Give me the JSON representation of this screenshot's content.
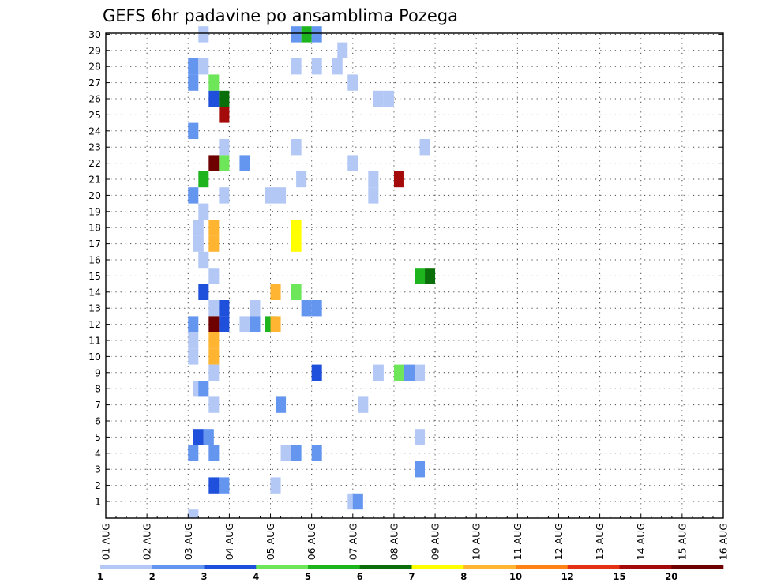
{
  "chart_data": {
    "type": "heatmap",
    "title": "GEFS 6hr padavine po ansamblima Pozega",
    "x_tick_labels": [
      "01 AUG",
      "02 AUG",
      "03 AUG",
      "04 AUG",
      "05 AUG",
      "06 AUG",
      "07 AUG",
      "08 AUG",
      "09 AUG",
      "10 AUG",
      "11 AUG",
      "12 AUG",
      "13 AUG",
      "14 AUG",
      "15 AUG",
      "16 AUG"
    ],
    "y_tick_labels": [
      "1",
      "2",
      "3",
      "4",
      "5",
      "6",
      "7",
      "8",
      "9",
      "10",
      "11",
      "12",
      "13",
      "14",
      "15",
      "16",
      "17",
      "18",
      "19",
      "20",
      "21",
      "22",
      "23",
      "24",
      "25",
      "26",
      "27",
      "28",
      "29",
      "30"
    ],
    "x_unit": "6-hour steps from 01 AUG 00Z",
    "grid": true,
    "colorbar": {
      "labels": [
        "1",
        "2",
        "3",
        "4",
        "5",
        "6",
        "7",
        "8",
        "10",
        "12",
        "15",
        "20"
      ],
      "colors": [
        "#b4c8f5",
        "#6496f0",
        "#1e50dc",
        "#6ee65a",
        "#1eb41e",
        "#0a6e0a",
        "#ffff00",
        "#ffb432",
        "#ff8214",
        "#e63214",
        "#a50a0a",
        "#6e0000"
      ]
    },
    "cells": [
      {
        "t": [
          9.5
        ],
        "m": 30,
        "v": 1
      },
      {
        "t": [
          18.5
        ],
        "m": 30,
        "v": 2
      },
      {
        "t": [
          19.5
        ],
        "m": 30,
        "v": 5
      },
      {
        "t": [
          20.5
        ],
        "m": 30,
        "v": 2
      },
      {
        "t": [
          23
        ],
        "m": 29,
        "v": 1
      },
      {
        "t": [
          8.5
        ],
        "m": 28,
        "v": 2
      },
      {
        "t": [
          9.5
        ],
        "m": 28,
        "v": 1
      },
      {
        "t": [
          18.5
        ],
        "m": 28,
        "v": 1
      },
      {
        "t": [
          20.5
        ],
        "m": 28,
        "v": 1
      },
      {
        "t": [
          22.5
        ],
        "m": 28,
        "v": 1
      },
      {
        "t": [
          8.5
        ],
        "m": 27,
        "v": 2
      },
      {
        "t": [
          10.5
        ],
        "m": 27,
        "v": 4
      },
      {
        "t": [
          24
        ],
        "m": 27,
        "v": 1
      },
      {
        "t": [
          10.5
        ],
        "m": 26,
        "v": 3
      },
      {
        "t": [
          11.5
        ],
        "m": 26,
        "v": 6
      },
      {
        "t": [
          26.5
        ],
        "m": 26,
        "v": 1
      },
      {
        "t": [
          27.5
        ],
        "m": 26,
        "v": 1
      },
      {
        "t": [
          11.5
        ],
        "m": 25,
        "v": 15
      },
      {
        "t": [
          8.5
        ],
        "m": 24,
        "v": 2
      },
      {
        "t": [
          11.5
        ],
        "m": 23,
        "v": 1
      },
      {
        "t": [
          18.5
        ],
        "m": 23,
        "v": 1
      },
      {
        "t": [
          31
        ],
        "m": 23,
        "v": 1
      },
      {
        "t": [
          10.5
        ],
        "m": 22,
        "v": 20
      },
      {
        "t": [
          11.5
        ],
        "m": 22,
        "v": 4
      },
      {
        "t": [
          13.5
        ],
        "m": 22,
        "v": 2
      },
      {
        "t": [
          24
        ],
        "m": 22,
        "v": 1
      },
      {
        "t": [
          9.5
        ],
        "m": 21,
        "v": 5
      },
      {
        "t": [
          19
        ],
        "m": 21,
        "v": 1
      },
      {
        "t": [
          26
        ],
        "m": 21,
        "v": 1
      },
      {
        "t": [
          28.5
        ],
        "m": 21,
        "v": 15
      },
      {
        "t": [
          8.5
        ],
        "m": 20,
        "v": 2
      },
      {
        "t": [
          11.5
        ],
        "m": 20,
        "v": 1
      },
      {
        "t": [
          16
        ],
        "m": 20,
        "v": 1
      },
      {
        "t": [
          17
        ],
        "m": 20,
        "v": 1
      },
      {
        "t": [
          26
        ],
        "m": 20,
        "v": 1
      },
      {
        "t": [
          9.5
        ],
        "m": 19,
        "v": 1
      },
      {
        "t": [
          9
        ],
        "m": 18,
        "v": 1
      },
      {
        "t": [
          10.5
        ],
        "m": 18,
        "v": 8
      },
      {
        "t": [
          18.5
        ],
        "m": 18,
        "v": 7
      },
      {
        "t": [
          9
        ],
        "m": 17,
        "v": 1
      },
      {
        "t": [
          10.5
        ],
        "m": 17,
        "v": 8
      },
      {
        "t": [
          18.5
        ],
        "m": 17,
        "v": 7
      },
      {
        "t": [
          9.5
        ],
        "m": 16,
        "v": 1
      },
      {
        "t": [
          10.5
        ],
        "m": 15,
        "v": 1
      },
      {
        "t": [
          30.5
        ],
        "m": 15,
        "v": 5
      },
      {
        "t": [
          31.5
        ],
        "m": 15,
        "v": 6
      },
      {
        "t": [
          9.5
        ],
        "m": 14,
        "v": 3
      },
      {
        "t": [
          16.5
        ],
        "m": 14,
        "v": 8
      },
      {
        "t": [
          18.5
        ],
        "m": 14,
        "v": 4
      },
      {
        "t": [
          10.5
        ],
        "m": 13,
        "v": 1
      },
      {
        "t": [
          11.5
        ],
        "m": 13,
        "v": 3
      },
      {
        "t": [
          14.5
        ],
        "m": 13,
        "v": 1
      },
      {
        "t": [
          19.5
        ],
        "m": 13,
        "v": 2
      },
      {
        "t": [
          20.5
        ],
        "m": 13,
        "v": 2
      },
      {
        "t": [
          8.5
        ],
        "m": 12,
        "v": 2
      },
      {
        "t": [
          10.5
        ],
        "m": 12,
        "v": 20
      },
      {
        "t": [
          11.5
        ],
        "m": 12,
        "v": 3
      },
      {
        "t": [
          13.5
        ],
        "m": 12,
        "v": 1
      },
      {
        "t": [
          14.5
        ],
        "m": 12,
        "v": 2
      },
      {
        "t": [
          16
        ],
        "m": 12,
        "v": 5
      },
      {
        "t": [
          16.5
        ],
        "m": 12,
        "v": 8
      },
      {
        "t": [
          8.5
        ],
        "m": 11,
        "v": 1
      },
      {
        "t": [
          10.5
        ],
        "m": 11,
        "v": 8
      },
      {
        "t": [
          8.5
        ],
        "m": 10,
        "v": 1
      },
      {
        "t": [
          10.5
        ],
        "m": 10,
        "v": 8
      },
      {
        "t": [
          10.5
        ],
        "m": 9,
        "v": 1
      },
      {
        "t": [
          20.5
        ],
        "m": 9,
        "v": 3
      },
      {
        "t": [
          26.5
        ],
        "m": 9,
        "v": 1
      },
      {
        "t": [
          28.5
        ],
        "m": 9,
        "v": 4
      },
      {
        "t": [
          29.5
        ],
        "m": 9,
        "v": 2
      },
      {
        "t": [
          30.5
        ],
        "m": 9,
        "v": 1
      },
      {
        "t": [
          9
        ],
        "m": 8,
        "v": 1
      },
      {
        "t": [
          9.5
        ],
        "m": 8,
        "v": 2
      },
      {
        "t": [
          10.5
        ],
        "m": 7,
        "v": 1
      },
      {
        "t": [
          17
        ],
        "m": 7,
        "v": 2
      },
      {
        "t": [
          25
        ],
        "m": 7,
        "v": 1
      },
      {
        "t": [
          9
        ],
        "m": 5,
        "v": 3
      },
      {
        "t": [
          10
        ],
        "m": 5,
        "v": 2
      },
      {
        "t": [
          30.5
        ],
        "m": 5,
        "v": 1
      },
      {
        "t": [
          8.5
        ],
        "m": 4,
        "v": 2
      },
      {
        "t": [
          10.5
        ],
        "m": 4,
        "v": 2
      },
      {
        "t": [
          17.5
        ],
        "m": 4,
        "v": 1
      },
      {
        "t": [
          18.5
        ],
        "m": 4,
        "v": 2
      },
      {
        "t": [
          20.5
        ],
        "m": 4,
        "v": 2
      },
      {
        "t": [
          30.5
        ],
        "m": 3,
        "v": 2
      },
      {
        "t": [
          10.5
        ],
        "m": 2,
        "v": 3
      },
      {
        "t": [
          11.5
        ],
        "m": 2,
        "v": 2
      },
      {
        "t": [
          16.5
        ],
        "m": 2,
        "v": 1
      },
      {
        "t": [
          24
        ],
        "m": 1,
        "v": 1
      },
      {
        "t": [
          24.5
        ],
        "m": 1,
        "v": 2
      },
      {
        "t": [
          8.5
        ],
        "m": 0,
        "v": 1
      }
    ]
  }
}
